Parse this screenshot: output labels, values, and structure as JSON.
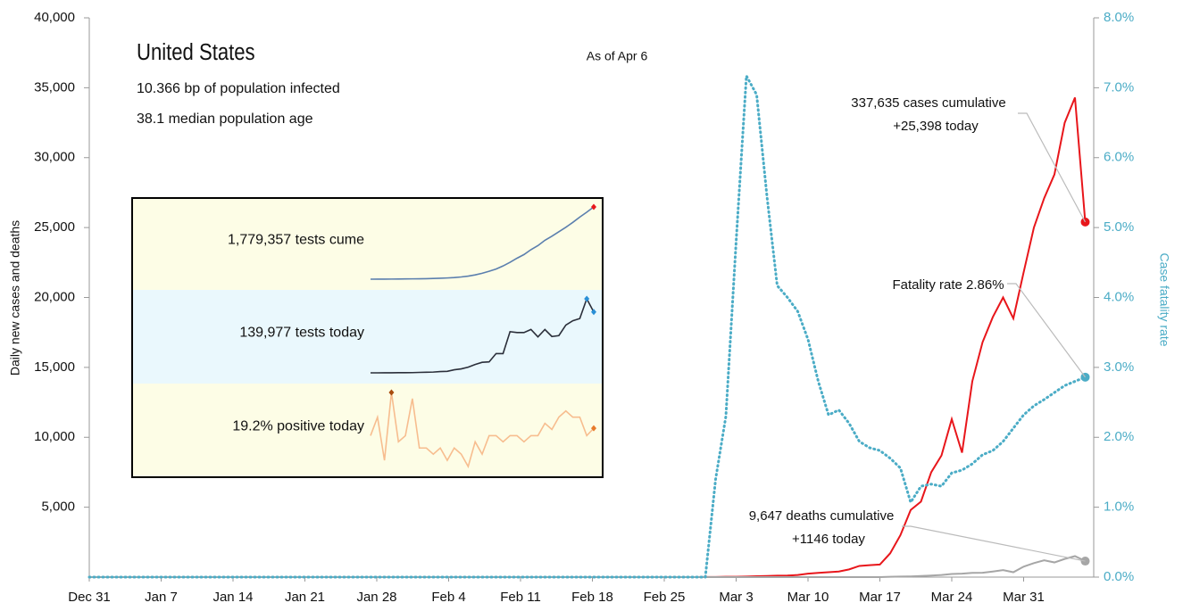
{
  "chart_data": {
    "type": "line",
    "title": "United States",
    "subtitle_lines": [
      "10.366 bp of population infected",
      "38.1 median population age"
    ],
    "date_note": "As of Apr 6",
    "y_label": "Daily new cases and deaths",
    "y2_label": "Case fatality rate",
    "categories": [
      "Dec 31",
      null,
      null,
      null,
      null,
      null,
      null,
      "Jan 7",
      null,
      null,
      null,
      null,
      null,
      null,
      "Jan 14",
      null,
      null,
      null,
      null,
      null,
      null,
      "Jan 21",
      null,
      null,
      null,
      null,
      null,
      null,
      "Jan 28",
      null,
      null,
      null,
      null,
      null,
      null,
      "Feb 4",
      null,
      null,
      null,
      null,
      null,
      null,
      "Feb 11",
      null,
      null,
      null,
      null,
      null,
      null,
      "Feb 18",
      null,
      null,
      null,
      null,
      null,
      null,
      "Feb 25",
      null,
      null,
      null,
      null,
      null,
      null,
      "Mar 3",
      null,
      null,
      null,
      null,
      null,
      null,
      "Mar 10",
      null,
      null,
      null,
      null,
      null,
      null,
      "Mar 17",
      null,
      null,
      null,
      null,
      null,
      null,
      "Mar 24",
      null,
      null,
      null,
      null,
      null,
      null,
      "Mar 31",
      null,
      null,
      null,
      null,
      null,
      null
    ],
    "ylim": [
      0,
      40000
    ],
    "yticks": [
      {
        "value": 5000,
        "label": "5,000"
      },
      {
        "value": 10000,
        "label": "10,000"
      },
      {
        "value": 15000,
        "label": "15,000"
      },
      {
        "value": 20000,
        "label": "20,000"
      },
      {
        "value": 25000,
        "label": "25,000"
      },
      {
        "value": 30000,
        "label": "30,000"
      },
      {
        "value": 35000,
        "label": "35,000"
      },
      {
        "value": 40000,
        "label": "40,000"
      }
    ],
    "y2lim": [
      0,
      8
    ],
    "y2ticks": [
      {
        "value": 0,
        "label": "0.0%"
      },
      {
        "value": 1,
        "label": "1.0%"
      },
      {
        "value": 2,
        "label": "2.0%"
      },
      {
        "value": 3,
        "label": "3.0%"
      },
      {
        "value": 4,
        "label": "4.0%"
      },
      {
        "value": 5,
        "label": "5.0%"
      },
      {
        "value": 6,
        "label": "6.0%"
      },
      {
        "value": 7,
        "label": "7.0%"
      },
      {
        "value": 8,
        "label": "8.0%"
      }
    ],
    "series": [
      {
        "name": "Daily new cases",
        "color": "#e8161b",
        "values": [
          0,
          0,
          0,
          0,
          0,
          0,
          0,
          0,
          0,
          0,
          0,
          0,
          0,
          0,
          0,
          0,
          0,
          0,
          0,
          0,
          0,
          0,
          0,
          0,
          0,
          0,
          0,
          0,
          0,
          0,
          0,
          0,
          0,
          0,
          0,
          0,
          0,
          0,
          0,
          0,
          0,
          0,
          0,
          0,
          0,
          0,
          0,
          0,
          0,
          0,
          0,
          0,
          0,
          0,
          0,
          0,
          0,
          0,
          0,
          0,
          5,
          10,
          20,
          25,
          40,
          60,
          80,
          100,
          110,
          150,
          250,
          300,
          350,
          400,
          550,
          800,
          850,
          900,
          1700,
          3000,
          4800,
          5400,
          7500,
          8700,
          11300,
          8900,
          14000,
          16800,
          18600,
          20000,
          18500,
          21800,
          25000,
          27100,
          28800,
          32500,
          34300,
          25398
        ]
      },
      {
        "name": "Daily deaths",
        "color": "#a6a6a6",
        "values": [
          0,
          0,
          0,
          0,
          0,
          0,
          0,
          0,
          0,
          0,
          0,
          0,
          0,
          0,
          0,
          0,
          0,
          0,
          0,
          0,
          0,
          0,
          0,
          0,
          0,
          0,
          0,
          0,
          0,
          0,
          0,
          0,
          0,
          0,
          0,
          0,
          0,
          0,
          0,
          0,
          0,
          0,
          0,
          0,
          0,
          0,
          0,
          0,
          0,
          0,
          0,
          0,
          0,
          0,
          0,
          0,
          0,
          0,
          0,
          0,
          0,
          0,
          0,
          0,
          0,
          0,
          0,
          0,
          0,
          0,
          0,
          0,
          0,
          0,
          0,
          0,
          0,
          0,
          20,
          40,
          50,
          80,
          110,
          150,
          220,
          250,
          300,
          310,
          400,
          500,
          350,
          750,
          1000,
          1200,
          1050,
          1300,
          1500,
          1146
        ]
      },
      {
        "name": "Case fatality rate",
        "color": "#4bacc6",
        "axis": "y2",
        "dotted": true,
        "values": [
          0,
          0,
          0,
          0,
          0,
          0,
          0,
          0,
          0,
          0,
          0,
          0,
          0,
          0,
          0,
          0,
          0,
          0,
          0,
          0,
          0,
          0,
          0,
          0,
          0,
          0,
          0,
          0,
          0,
          0,
          0,
          0,
          0,
          0,
          0,
          0,
          0,
          0,
          0,
          0,
          0,
          0,
          0,
          0,
          0,
          0,
          0,
          0,
          0,
          0,
          0,
          0,
          0,
          0,
          0,
          0,
          0,
          0,
          0,
          0,
          0,
          1.4,
          2.3,
          4.8,
          7.17,
          6.9,
          5.45,
          4.17,
          4.0,
          3.8,
          3.4,
          2.8,
          2.32,
          2.39,
          2.2,
          1.94,
          1.85,
          1.81,
          1.7,
          1.56,
          1.07,
          1.3,
          1.33,
          1.3,
          1.49,
          1.53,
          1.62,
          1.75,
          1.81,
          1.94,
          2.13,
          2.32,
          2.45,
          2.54,
          2.64,
          2.74,
          2.8,
          2.86
        ]
      }
    ],
    "annotations": [
      {
        "lines": [
          "337,635 cases cumulative",
          "+25,398 today"
        ],
        "series": 0
      },
      {
        "lines": [
          "Fatality rate 2.86%"
        ],
        "series": 2
      },
      {
        "lines": [
          "9,647 deaths cumulative",
          "+1146 today"
        ],
        "series": 1
      }
    ],
    "inset": [
      {
        "label": "1,779,357 tests cume",
        "color": "#5b7fae",
        "band": "#fdfde6",
        "end_color": "#e8161b",
        "values": [
          5000,
          6000,
          7000,
          8000,
          9000,
          11000,
          13000,
          15000,
          18000,
          22000,
          28000,
          35000,
          45000,
          60000,
          80000,
          110000,
          150000,
          200000,
          255000,
          330000,
          420000,
          520000,
          610000,
          730000,
          830000,
          960000,
          1060000,
          1170000,
          1280000,
          1400000,
          1530000,
          1650000,
          1779357
        ]
      },
      {
        "label": "139,977 tests today",
        "color": "#2b2f3a",
        "band": "#eaf8fd",
        "peak_color": "#2a8fd6",
        "end_color": "#2a8fd6",
        "values": [
          1000,
          1000,
          1200,
          1100,
          1300,
          1400,
          1500,
          2000,
          2500,
          2800,
          4000,
          4500,
          8000,
          10000,
          14000,
          20000,
          25000,
          26000,
          45000,
          45000,
          95000,
          93000,
          93000,
          100000,
          83000,
          100000,
          84000,
          86000,
          110000,
          120000,
          125000,
          170000,
          139977
        ]
      },
      {
        "label": "19.2% positive today",
        "color": "#f7bd8f",
        "band": "#fdfde6",
        "peak_color": "#a84c0e",
        "end_color": "#e77a2a",
        "values": [
          18,
          21,
          14,
          25,
          17,
          18,
          24,
          16,
          16,
          15,
          16,
          14,
          16,
          15,
          13,
          17,
          15,
          18,
          18,
          17,
          18,
          18,
          17,
          18,
          18,
          20,
          19,
          21,
          22,
          21,
          21,
          18,
          19.2
        ]
      }
    ]
  }
}
